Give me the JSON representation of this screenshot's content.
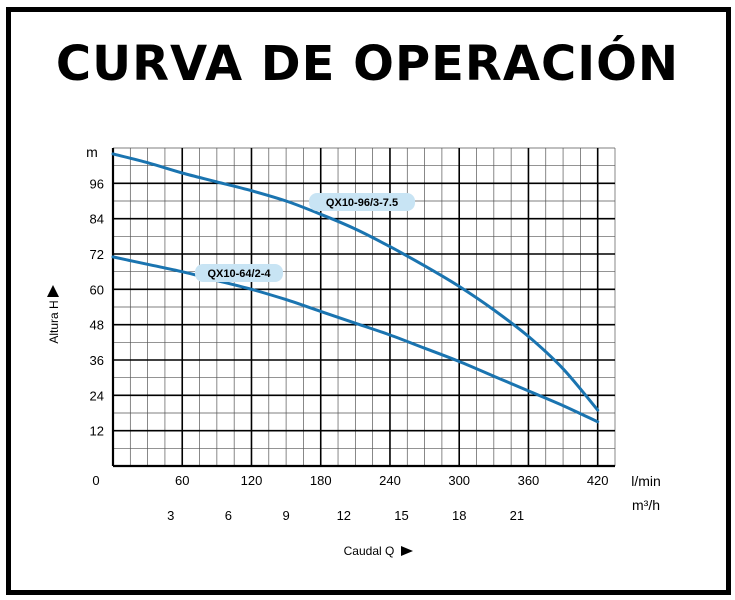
{
  "title": "CURVA DE OPERACIÓN",
  "chart_data": {
    "type": "line",
    "y_unit": "m",
    "ylabel": "Altura  H",
    "xlabel": "Caudal  Q",
    "x_unit_primary": "l/min",
    "x_unit_secondary": "m³/h",
    "origin_label": "0",
    "ylim": [
      0,
      108
    ],
    "xlim": [
      0,
      435
    ],
    "y_ticks": [
      12,
      24,
      36,
      48,
      60,
      72,
      84,
      96
    ],
    "x_ticks_lmin": [
      60,
      120,
      180,
      240,
      300,
      360,
      420
    ],
    "x_ticks_m3h": [
      {
        "value": 3,
        "at_lmin": 50
      },
      {
        "value": 6,
        "at_lmin": 100
      },
      {
        "value": 9,
        "at_lmin": 150
      },
      {
        "value": 12,
        "at_lmin": 200
      },
      {
        "value": 15,
        "at_lmin": 250
      },
      {
        "value": 18,
        "at_lmin": 300
      },
      {
        "value": 21,
        "at_lmin": 350
      }
    ],
    "grid": true,
    "series": [
      {
        "name": "QX10-96/3-7.5",
        "color": "#1a74b0",
        "label_color": "#c8e4f4",
        "x": [
          0,
          30,
          60,
          90,
          120,
          150,
          180,
          210,
          240,
          270,
          300,
          330,
          360,
          390,
          420
        ],
        "y": [
          106,
          103,
          99.5,
          96.5,
          93.5,
          90,
          85.5,
          80.5,
          74.5,
          68,
          61,
          53,
          44,
          33,
          19
        ]
      },
      {
        "name": "QX10-64/2-4",
        "color": "#1a74b0",
        "label_color": "#c8e4f4",
        "x": [
          0,
          30,
          60,
          90,
          120,
          150,
          180,
          210,
          240,
          270,
          300,
          330,
          360,
          390,
          420
        ],
        "y": [
          71,
          68.5,
          66,
          63,
          60,
          56.5,
          52.5,
          48.5,
          44.5,
          40,
          35.5,
          30.5,
          25.5,
          20.5,
          15
        ]
      }
    ]
  }
}
